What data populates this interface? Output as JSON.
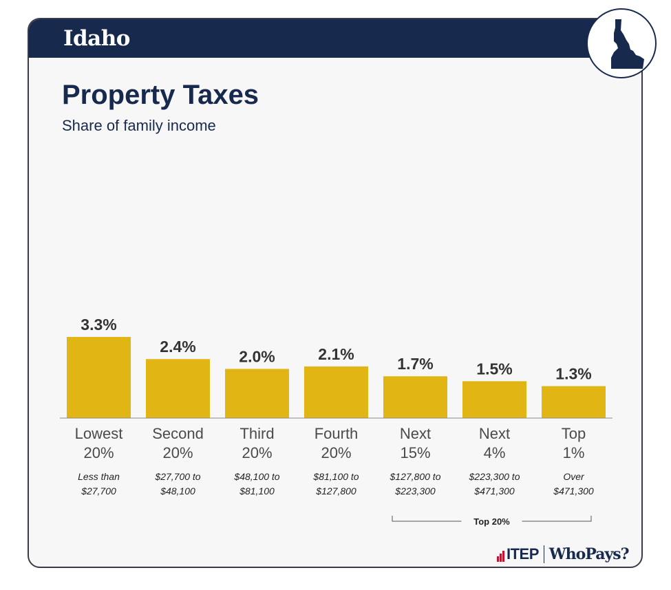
{
  "header": {
    "state": "Idaho",
    "state_icon": "idaho-state-outline-icon"
  },
  "title": "Property Taxes",
  "subtitle": "Share of family income",
  "chart_data": {
    "type": "bar",
    "title": "Property Taxes",
    "subtitle": "Share of family income",
    "categories": [
      {
        "line1": "Lowest",
        "line2": "20%",
        "range1": "Less than",
        "range2": "$27,700"
      },
      {
        "line1": "Second",
        "line2": "20%",
        "range1": "$27,700 to",
        "range2": "$48,100"
      },
      {
        "line1": "Third",
        "line2": "20%",
        "range1": "$48,100 to",
        "range2": "$81,100"
      },
      {
        "line1": "Fourth",
        "line2": "20%",
        "range1": "$81,100 to",
        "range2": "$127,800"
      },
      {
        "line1": "Next",
        "line2": "15%",
        "range1": "$127,800 to",
        "range2": "$223,300"
      },
      {
        "line1": "Next",
        "line2": "4%",
        "range1": "$223,300 to",
        "range2": "$471,300"
      },
      {
        "line1": "Top",
        "line2": "1%",
        "range1": "Over",
        "range2": "$471,300"
      }
    ],
    "values": [
      3.3,
      2.4,
      2.0,
      2.1,
      1.7,
      1.5,
      1.3
    ],
    "value_labels": [
      "3.3%",
      "2.4%",
      "2.0%",
      "2.1%",
      "1.7%",
      "1.5%",
      "1.3%"
    ],
    "ylim": [
      0,
      3.3
    ],
    "bar_color": "#e1b514",
    "grid": false,
    "group_bracket": {
      "label": "Top 20%",
      "from_index": 4,
      "to_index": 6
    }
  },
  "footer": {
    "itep": "ITEP",
    "whopays": "WhoPays?"
  }
}
